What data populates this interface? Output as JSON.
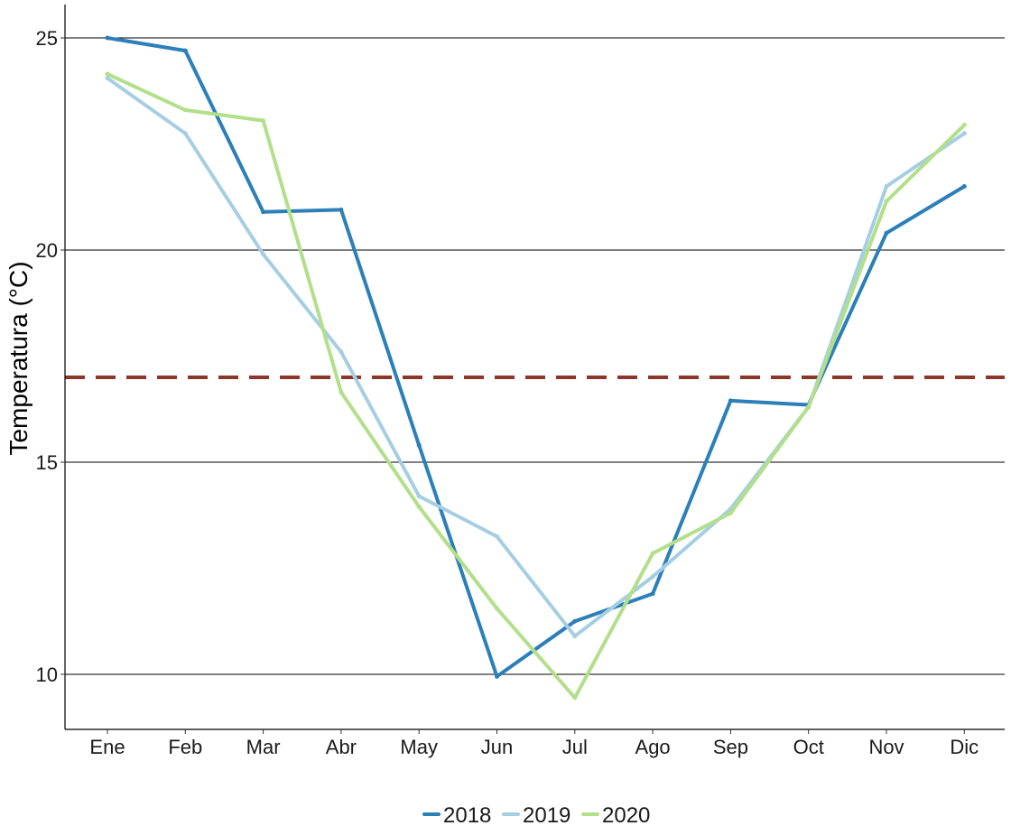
{
  "chart_data": {
    "type": "line",
    "title": "",
    "xlabel": "",
    "ylabel": "Temperatura (°C)",
    "categories": [
      "Ene",
      "Feb",
      "Mar",
      "Abr",
      "May",
      "Jun",
      "Jul",
      "Ago",
      "Sep",
      "Oct",
      "Nov",
      "Dic"
    ],
    "ylim": [
      8.7,
      25.8
    ],
    "yticks": [
      10,
      15,
      20,
      25
    ],
    "grid": "horizontal major lines",
    "legend_position": "bottom",
    "series": [
      {
        "name": "2018",
        "color": "#2c7fb8",
        "values": [
          25.0,
          24.7,
          20.9,
          20.95,
          15.4,
          9.95,
          11.25,
          11.9,
          16.45,
          16.35,
          20.4,
          21.5
        ]
      },
      {
        "name": "2019",
        "color": "#a6cee3",
        "values": [
          24.05,
          22.75,
          19.9,
          17.6,
          14.2,
          13.25,
          10.9,
          12.3,
          13.9,
          16.3,
          21.5,
          22.75
        ]
      },
      {
        "name": "2020",
        "color": "#b2df8a",
        "values": [
          24.15,
          23.3,
          23.05,
          16.65,
          13.95,
          11.55,
          9.45,
          12.85,
          13.8,
          16.3,
          21.15,
          22.95
        ]
      }
    ],
    "reference_line": {
      "y": 17,
      "color": "#8b3626",
      "style": "dashed"
    }
  }
}
